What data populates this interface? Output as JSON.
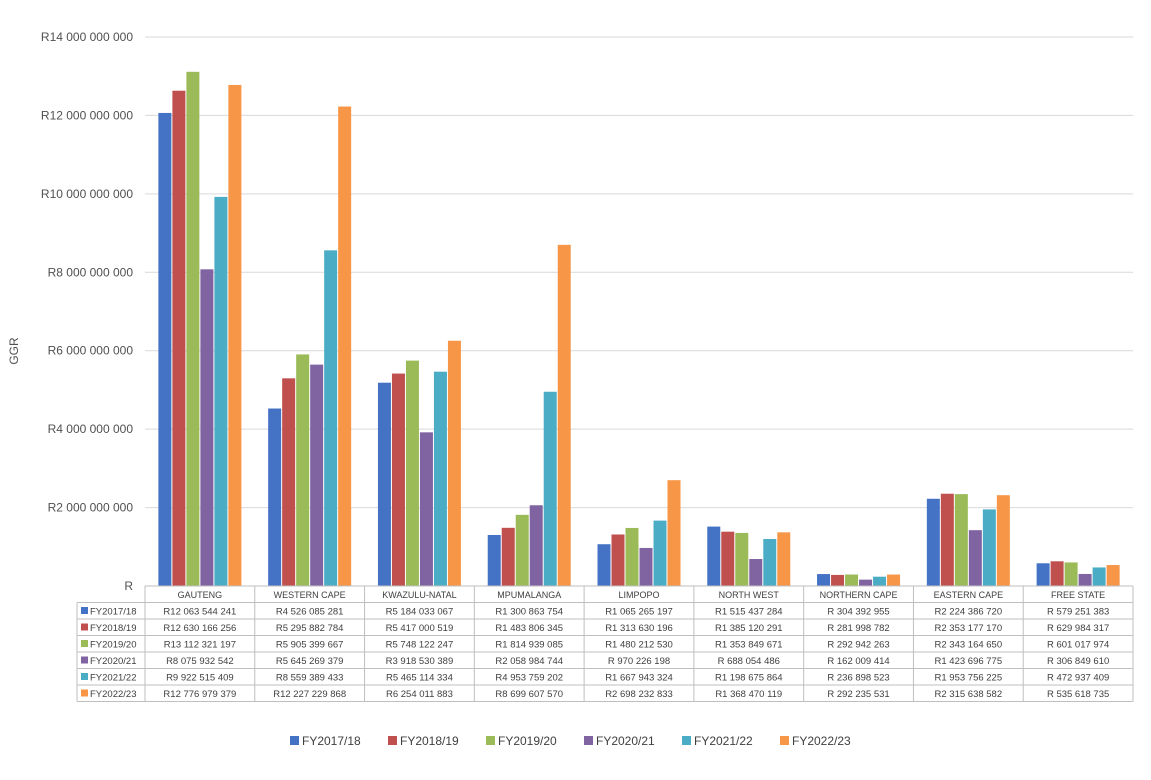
{
  "chart_data": {
    "type": "bar",
    "title": "",
    "ylabel": "GGR",
    "xlabel": "",
    "ylim": [
      0,
      14000000000
    ],
    "yticks": [
      0,
      2000000000,
      4000000000,
      6000000000,
      8000000000,
      10000000000,
      12000000000,
      14000000000
    ],
    "ytick_labels": [
      "R",
      "R2 000 000 000",
      "R4 000 000 000",
      "R6 000 000 000",
      "R8 000 000 000",
      "R10 000 000 000",
      "R12 000 000 000",
      "R14 000 000 000"
    ],
    "grid": true,
    "legend_position": "bottom",
    "categories": [
      "GAUTENG",
      "WESTERN CAPE",
      "KWAZULU-NATAL",
      "MPUMALANGA",
      "LIMPOPO",
      "NORTH WEST",
      "NORTHERN CAPE",
      "EASTERN CAPE",
      "FREE STATE"
    ],
    "series": [
      {
        "name": "FY2017/18",
        "color": "#4472c4",
        "values": [
          12063544241,
          4526085281,
          5184033067,
          1300863754,
          1065265197,
          1515437284,
          304392955,
          2224386720,
          579251383
        ],
        "labels": [
          "R12 063 544 241",
          "R4 526 085 281",
          "R5 184 033 067",
          "R1 300 863 754",
          "R1 065 265 197",
          "R1 515 437 284",
          "R 304 392 955",
          "R2 224 386 720",
          "R 579 251 383"
        ]
      },
      {
        "name": "FY2018/19",
        "color": "#c0504d",
        "values": [
          12630166256,
          5295882784,
          5417000519,
          1483806345,
          1313630196,
          1385120291,
          281998782,
          2353177170,
          629984317
        ],
        "labels": [
          "R12 630 166 256",
          "R5 295 882 784",
          "R5 417 000 519",
          "R1 483 806 345",
          "R1 313 630 196",
          "R1 385 120 291",
          "R 281 998 782",
          "R2 353 177 170",
          "R 629 984 317"
        ]
      },
      {
        "name": "FY2019/20",
        "color": "#9bbb59",
        "values": [
          13112321197,
          5905399667,
          5748122247,
          1814939085,
          1480212530,
          1353849671,
          292942263,
          2343164650,
          601017974
        ],
        "labels": [
          "R13 112 321 197",
          "R5 905 399 667",
          "R5 748 122 247",
          "R1 814 939 085",
          "R1 480 212 530",
          "R1 353 849 671",
          "R 292 942 263",
          "R2 343 164 650",
          "R 601 017 974"
        ]
      },
      {
        "name": "FY2020/21",
        "color": "#8064a2",
        "values": [
          8075932542,
          5645269379,
          3918530389,
          2058984744,
          970226198,
          688054486,
          162009414,
          1423696775,
          306849610
        ],
        "labels": [
          "R8 075 932 542",
          "R5 645 269 379",
          "R3 918 530 389",
          "R2 058 984 744",
          "R 970 226 198",
          "R 688 054 486",
          "R 162 009 414",
          "R1 423 696 775",
          "R 306 849 610"
        ]
      },
      {
        "name": "FY2021/22",
        "color": "#4bacc6",
        "values": [
          9922515409,
          8559389433,
          5465114334,
          4953759202,
          1667943324,
          1198675864,
          236898523,
          1953756225,
          472937409
        ],
        "labels": [
          "R9 922 515 409",
          "R8 559 389 433",
          "R5 465 114 334",
          "R4 953 759 202",
          "R1 667 943 324",
          "R1 198 675 864",
          "R 236 898 523",
          "R1 953 756 225",
          "R 472 937 409"
        ]
      },
      {
        "name": "FY2022/23",
        "color": "#f79646",
        "values": [
          12776979379,
          12227229868,
          6254011883,
          8699607570,
          2698232833,
          1368470119,
          292235531,
          2315638582,
          535618735
        ],
        "labels": [
          "R12 776 979 379",
          "R12 227 229 868",
          "R6 254 011 883",
          "R8 699 607 570",
          "R2 698 232 833",
          "R1 368 470 119",
          "R 292 235 531",
          "R2 315 638 582",
          "R 535 618 735"
        ]
      }
    ]
  }
}
